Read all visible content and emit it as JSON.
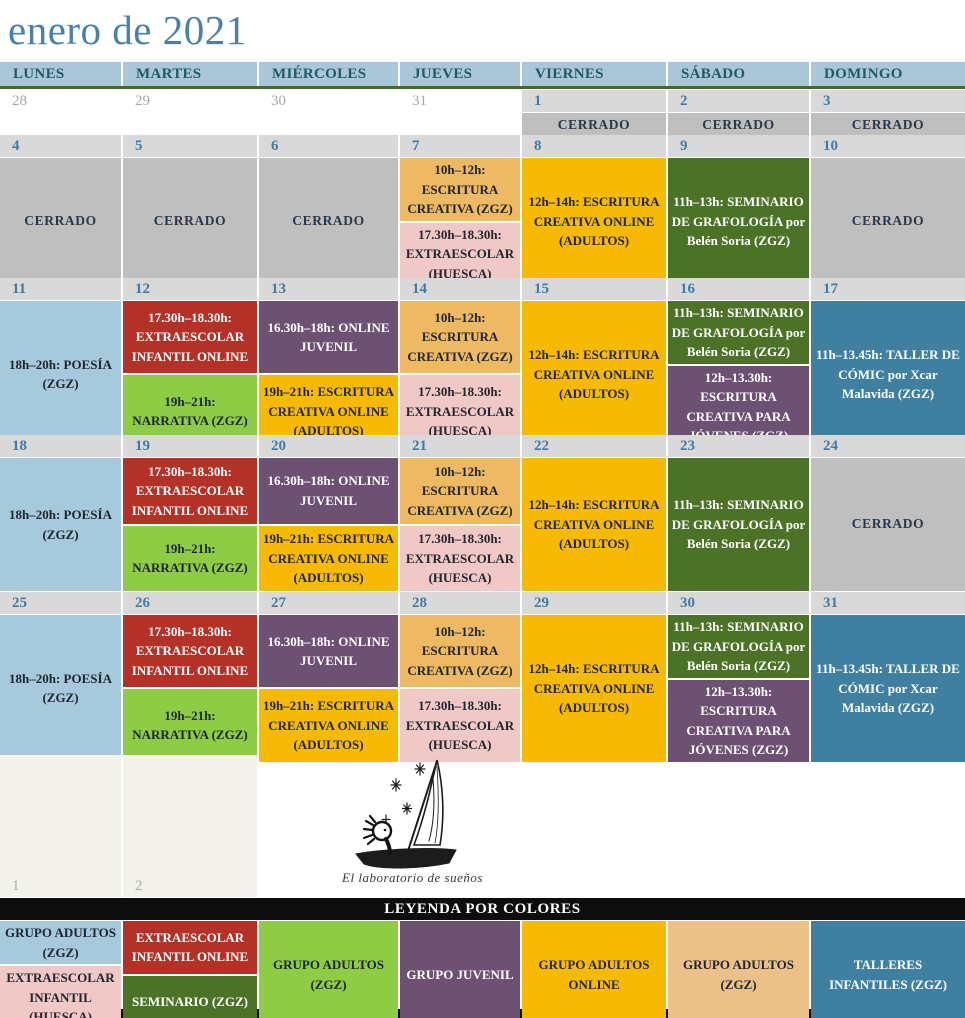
{
  "title": "enero de 2021",
  "calendar": {
    "weekdays": [
      "LUNES",
      "MARTES",
      "MIÉRCOLES",
      "JUEVES",
      "VIERNES",
      "SÁBADO",
      "DOMINGO"
    ],
    "weeks": [
      {
        "days": [
          {
            "num": "28",
            "out": true,
            "events": []
          },
          {
            "num": "29",
            "out": true,
            "events": []
          },
          {
            "num": "30",
            "out": true,
            "events": []
          },
          {
            "num": "31",
            "out": true,
            "events": []
          },
          {
            "num": "1",
            "out": false,
            "events": [
              {
                "text": "CERRADO",
                "type": "cerrado"
              }
            ]
          },
          {
            "num": "2",
            "out": false,
            "events": [
              {
                "text": "CERRADO",
                "type": "cerrado"
              }
            ]
          },
          {
            "num": "3",
            "out": false,
            "events": [
              {
                "text": "CERRADO",
                "type": "cerrado"
              }
            ]
          }
        ]
      },
      {
        "days": [
          {
            "num": "4",
            "out": false,
            "events": [
              {
                "text": "CERRADO",
                "type": "cerrado"
              }
            ]
          },
          {
            "num": "5",
            "out": false,
            "events": [
              {
                "text": "CERRADO",
                "type": "cerrado"
              }
            ]
          },
          {
            "num": "6",
            "out": false,
            "events": [
              {
                "text": "CERRADO",
                "type": "cerrado"
              }
            ]
          },
          {
            "num": "7",
            "out": false,
            "events": [
              {
                "text": "10h–12h: ESCRITURA CREATIVA (ZGZ)",
                "type": "adultos_zgz_manana"
              },
              {
                "text": "17.30h–18.30h: EXTRAESCOLAR (HUESCA)",
                "type": "extraescolar_huesca"
              }
            ]
          },
          {
            "num": "8",
            "out": false,
            "events": [
              {
                "text": "12h–14h: ESCRITURA CREATIVA ONLINE (ADULTOS)",
                "type": "adultos_online"
              }
            ]
          },
          {
            "num": "9",
            "out": false,
            "events": [
              {
                "text": "11h–13h: SEMINARIO DE GRAFOLOGÍA por Belén Soria (ZGZ)",
                "type": "seminario"
              }
            ]
          },
          {
            "num": "10",
            "out": false,
            "events": [
              {
                "text": "CERRADO",
                "type": "cerrado"
              }
            ]
          }
        ]
      },
      {
        "days": [
          {
            "num": "11",
            "out": false,
            "events": [
              {
                "text": "18h–20h: POESÍA (ZGZ)",
                "type": "poesia"
              }
            ]
          },
          {
            "num": "12",
            "out": false,
            "events": [
              {
                "text": "17.30h–18.30h: EXTRAESCOLAR INFANTIL ONLINE",
                "type": "extraescolar_infantil_online"
              },
              {
                "text": "19h–21h: NARRATIVA (ZGZ)",
                "type": "narrativa"
              }
            ]
          },
          {
            "num": "13",
            "out": false,
            "events": [
              {
                "text": "16.30h–18h: ONLINE JUVENIL",
                "type": "online_juvenil"
              },
              {
                "text": "19h–21h: ESCRITURA CREATIVA ONLINE (ADULTOS)",
                "type": "adultos_online"
              }
            ]
          },
          {
            "num": "14",
            "out": false,
            "events": [
              {
                "text": "10h–12h: ESCRITURA CREATIVA (ZGZ)",
                "type": "adultos_zgz_manana"
              },
              {
                "text": "17.30h–18.30h: EXTRAESCOLAR (HUESCA)",
                "type": "extraescolar_huesca"
              }
            ]
          },
          {
            "num": "15",
            "out": false,
            "events": [
              {
                "text": "12h–14h: ESCRITURA CREATIVA ONLINE (ADULTOS)",
                "type": "adultos_online"
              }
            ]
          },
          {
            "num": "16",
            "out": false,
            "events": [
              {
                "text": "11h–13h: SEMINARIO DE GRAFOLOGÍA por Belén Soria (ZGZ)",
                "type": "seminario"
              },
              {
                "text": "12h–13.30h: ESCRITURA CREATIVA PARA JÓVENES (ZGZ)",
                "type": "jovenes_zgz"
              }
            ]
          },
          {
            "num": "17",
            "out": false,
            "events": [
              {
                "text": "11h–13.45h: TALLER DE CÓMIC por Xcar Malavida (ZGZ)",
                "type": "taller_comic"
              }
            ]
          }
        ]
      },
      {
        "days": [
          {
            "num": "18",
            "out": false,
            "events": [
              {
                "text": "18h–20h: POESÍA (ZGZ)",
                "type": "poesia"
              }
            ]
          },
          {
            "num": "19",
            "out": false,
            "events": [
              {
                "text": "17.30h–18.30h: EXTRAESCOLAR INFANTIL ONLINE",
                "type": "extraescolar_infantil_online"
              },
              {
                "text": "19h–21h: NARRATIVA (ZGZ)",
                "type": "narrativa"
              }
            ]
          },
          {
            "num": "20",
            "out": false,
            "events": [
              {
                "text": "16.30h–18h: ONLINE JUVENIL",
                "type": "online_juvenil"
              },
              {
                "text": "19h–21h: ESCRITURA CREATIVA ONLINE (ADULTOS)",
                "type": "adultos_online"
              }
            ]
          },
          {
            "num": "21",
            "out": false,
            "events": [
              {
                "text": "10h–12h: ESCRITURA CREATIVA (ZGZ)",
                "type": "adultos_zgz_manana"
              },
              {
                "text": "17.30h–18.30h: EXTRAESCOLAR (HUESCA)",
                "type": "extraescolar_huesca"
              }
            ]
          },
          {
            "num": "22",
            "out": false,
            "events": [
              {
                "text": "12h–14h: ESCRITURA CREATIVA ONLINE (ADULTOS)",
                "type": "adultos_online"
              }
            ]
          },
          {
            "num": "23",
            "out": false,
            "events": [
              {
                "text": "11h–13h: SEMINARIO DE GRAFOLOGÍA por Belén Soria (ZGZ)",
                "type": "seminario"
              }
            ]
          },
          {
            "num": "24",
            "out": false,
            "events": [
              {
                "text": "CERRADO",
                "type": "cerrado"
              }
            ]
          }
        ]
      },
      {
        "days": [
          {
            "num": "25",
            "out": false,
            "events": [
              {
                "text": "18h–20h: POESÍA (ZGZ)",
                "type": "poesia"
              }
            ]
          },
          {
            "num": "26",
            "out": false,
            "events": [
              {
                "text": "17.30h–18.30h: EXTRAESCOLAR INFANTIL ONLINE",
                "type": "extraescolar_infantil_online"
              },
              {
                "text": "19h–21h: NARRATIVA (ZGZ)",
                "type": "narrativa"
              }
            ]
          },
          {
            "num": "27",
            "out": false,
            "events": [
              {
                "text": "16.30h–18h: ONLINE JUVENIL",
                "type": "online_juvenil"
              },
              {
                "text": "19h–21h: ESCRITURA CREATIVA ONLINE (ADULTOS)",
                "type": "adultos_online"
              }
            ]
          },
          {
            "num": "28",
            "out": false,
            "events": [
              {
                "text": "10h–12h: ESCRITURA CREATIVA (ZGZ)",
                "type": "adultos_zgz_manana"
              },
              {
                "text": "17.30h–18.30h: EXTRAESCOLAR (HUESCA)",
                "type": "extraescolar_huesca"
              }
            ]
          },
          {
            "num": "29",
            "out": false,
            "events": [
              {
                "text": "12h–14h: ESCRITURA CREATIVA ONLINE (ADULTOS)",
                "type": "adultos_online"
              }
            ]
          },
          {
            "num": "30",
            "out": false,
            "events": [
              {
                "text": "11h–13h: SEMINARIO DE GRAFOLOGÍA por Belén Soria (ZGZ)",
                "type": "seminario"
              },
              {
                "text": "12h–13.30h: ESCRITURA CREATIVA PARA JÓVENES (ZGZ)",
                "type": "jovenes_zgz"
              }
            ]
          },
          {
            "num": "31",
            "out": false,
            "events": [
              {
                "text": "11h–13.45h: TALLER DE CÓMIC por Xcar Malavida (ZGZ)",
                "type": "taller_comic"
              }
            ]
          }
        ]
      }
    ],
    "tail": {
      "days": [
        {
          "num": "1"
        },
        {
          "num": "2"
        }
      ]
    }
  },
  "logo": {
    "caption": "El laboratorio de sueños"
  },
  "legend": {
    "title": "LEYENDA POR COLORES",
    "columns": [
      {
        "items": [
          {
            "text": "GRUPO ADULTOS (ZGZ)",
            "type": "poesia"
          },
          {
            "text": "EXTRAESCOLAR INFANTIL (HUESCA)",
            "type": "extraescolar_huesca"
          }
        ]
      },
      {
        "items": [
          {
            "text": "EXTRAESCOLAR INFANTIL ONLINE",
            "type": "extraescolar_infantil_online"
          },
          {
            "text": "SEMINARIO (ZGZ)",
            "type": "seminario"
          }
        ]
      },
      {
        "items": [
          {
            "text": "GRUPO ADULTOS (ZGZ)",
            "type": "narrativa"
          }
        ]
      },
      {
        "items": [
          {
            "text": "GRUPO JUVENIL",
            "type": "online_juvenil"
          }
        ]
      },
      {
        "items": [
          {
            "text": "GRUPO ADULTOS ONLINE",
            "type": "adultos_online"
          }
        ]
      },
      {
        "items": [
          {
            "text": "GRUPO ADULTOS (ZGZ)",
            "type": "adultos_zgz_tan"
          }
        ]
      },
      {
        "items": [
          {
            "text": "TALLERES INFANTILES (ZGZ)",
            "type": "taller_comic"
          }
        ]
      }
    ]
  },
  "palette": {
    "cerrado": {
      "bg": "#BFBFBF",
      "fg": "#2A3947"
    },
    "adultos_zgz_manana": {
      "bg": "#EDB962",
      "fg": "#20262E"
    },
    "extraescolar_huesca": {
      "bg": "#F0C8C5",
      "fg": "#20262E"
    },
    "adultos_online": {
      "bg": "#F6BA02",
      "fg": "#20262E"
    },
    "seminario": {
      "bg": "#4C7227",
      "fg": "#FFFFFF"
    },
    "extraescolar_infantil_online": {
      "bg": "#B33127",
      "fg": "#FFFFFF"
    },
    "narrativa": {
      "bg": "#8ECC46",
      "fg": "#20262E"
    },
    "online_juvenil": {
      "bg": "#6C5173",
      "fg": "#FFFFFF"
    },
    "jovenes_zgz": {
      "bg": "#6C5173",
      "fg": "#FFFFFF"
    },
    "poesia": {
      "bg": "#A7C9DC",
      "fg": "#20262E"
    },
    "taller_comic": {
      "bg": "#3F7FA0",
      "fg": "#FFFFFF"
    },
    "adultos_zgz_tan": {
      "bg": "#EBC189",
      "fg": "#20262E"
    }
  },
  "ui_colors": {
    "title": "#4A81A6",
    "header_bg": "#A9C7D8",
    "header_fg": "#1F5A68",
    "green_rule": "#48691F",
    "date_strip_bg": "#D9D9D9",
    "date_fg": "#3E7CA6",
    "out_date_fg": "#A8A8A8",
    "cream": "#F2F1EA",
    "legend_bar": "#0D0D0D"
  }
}
